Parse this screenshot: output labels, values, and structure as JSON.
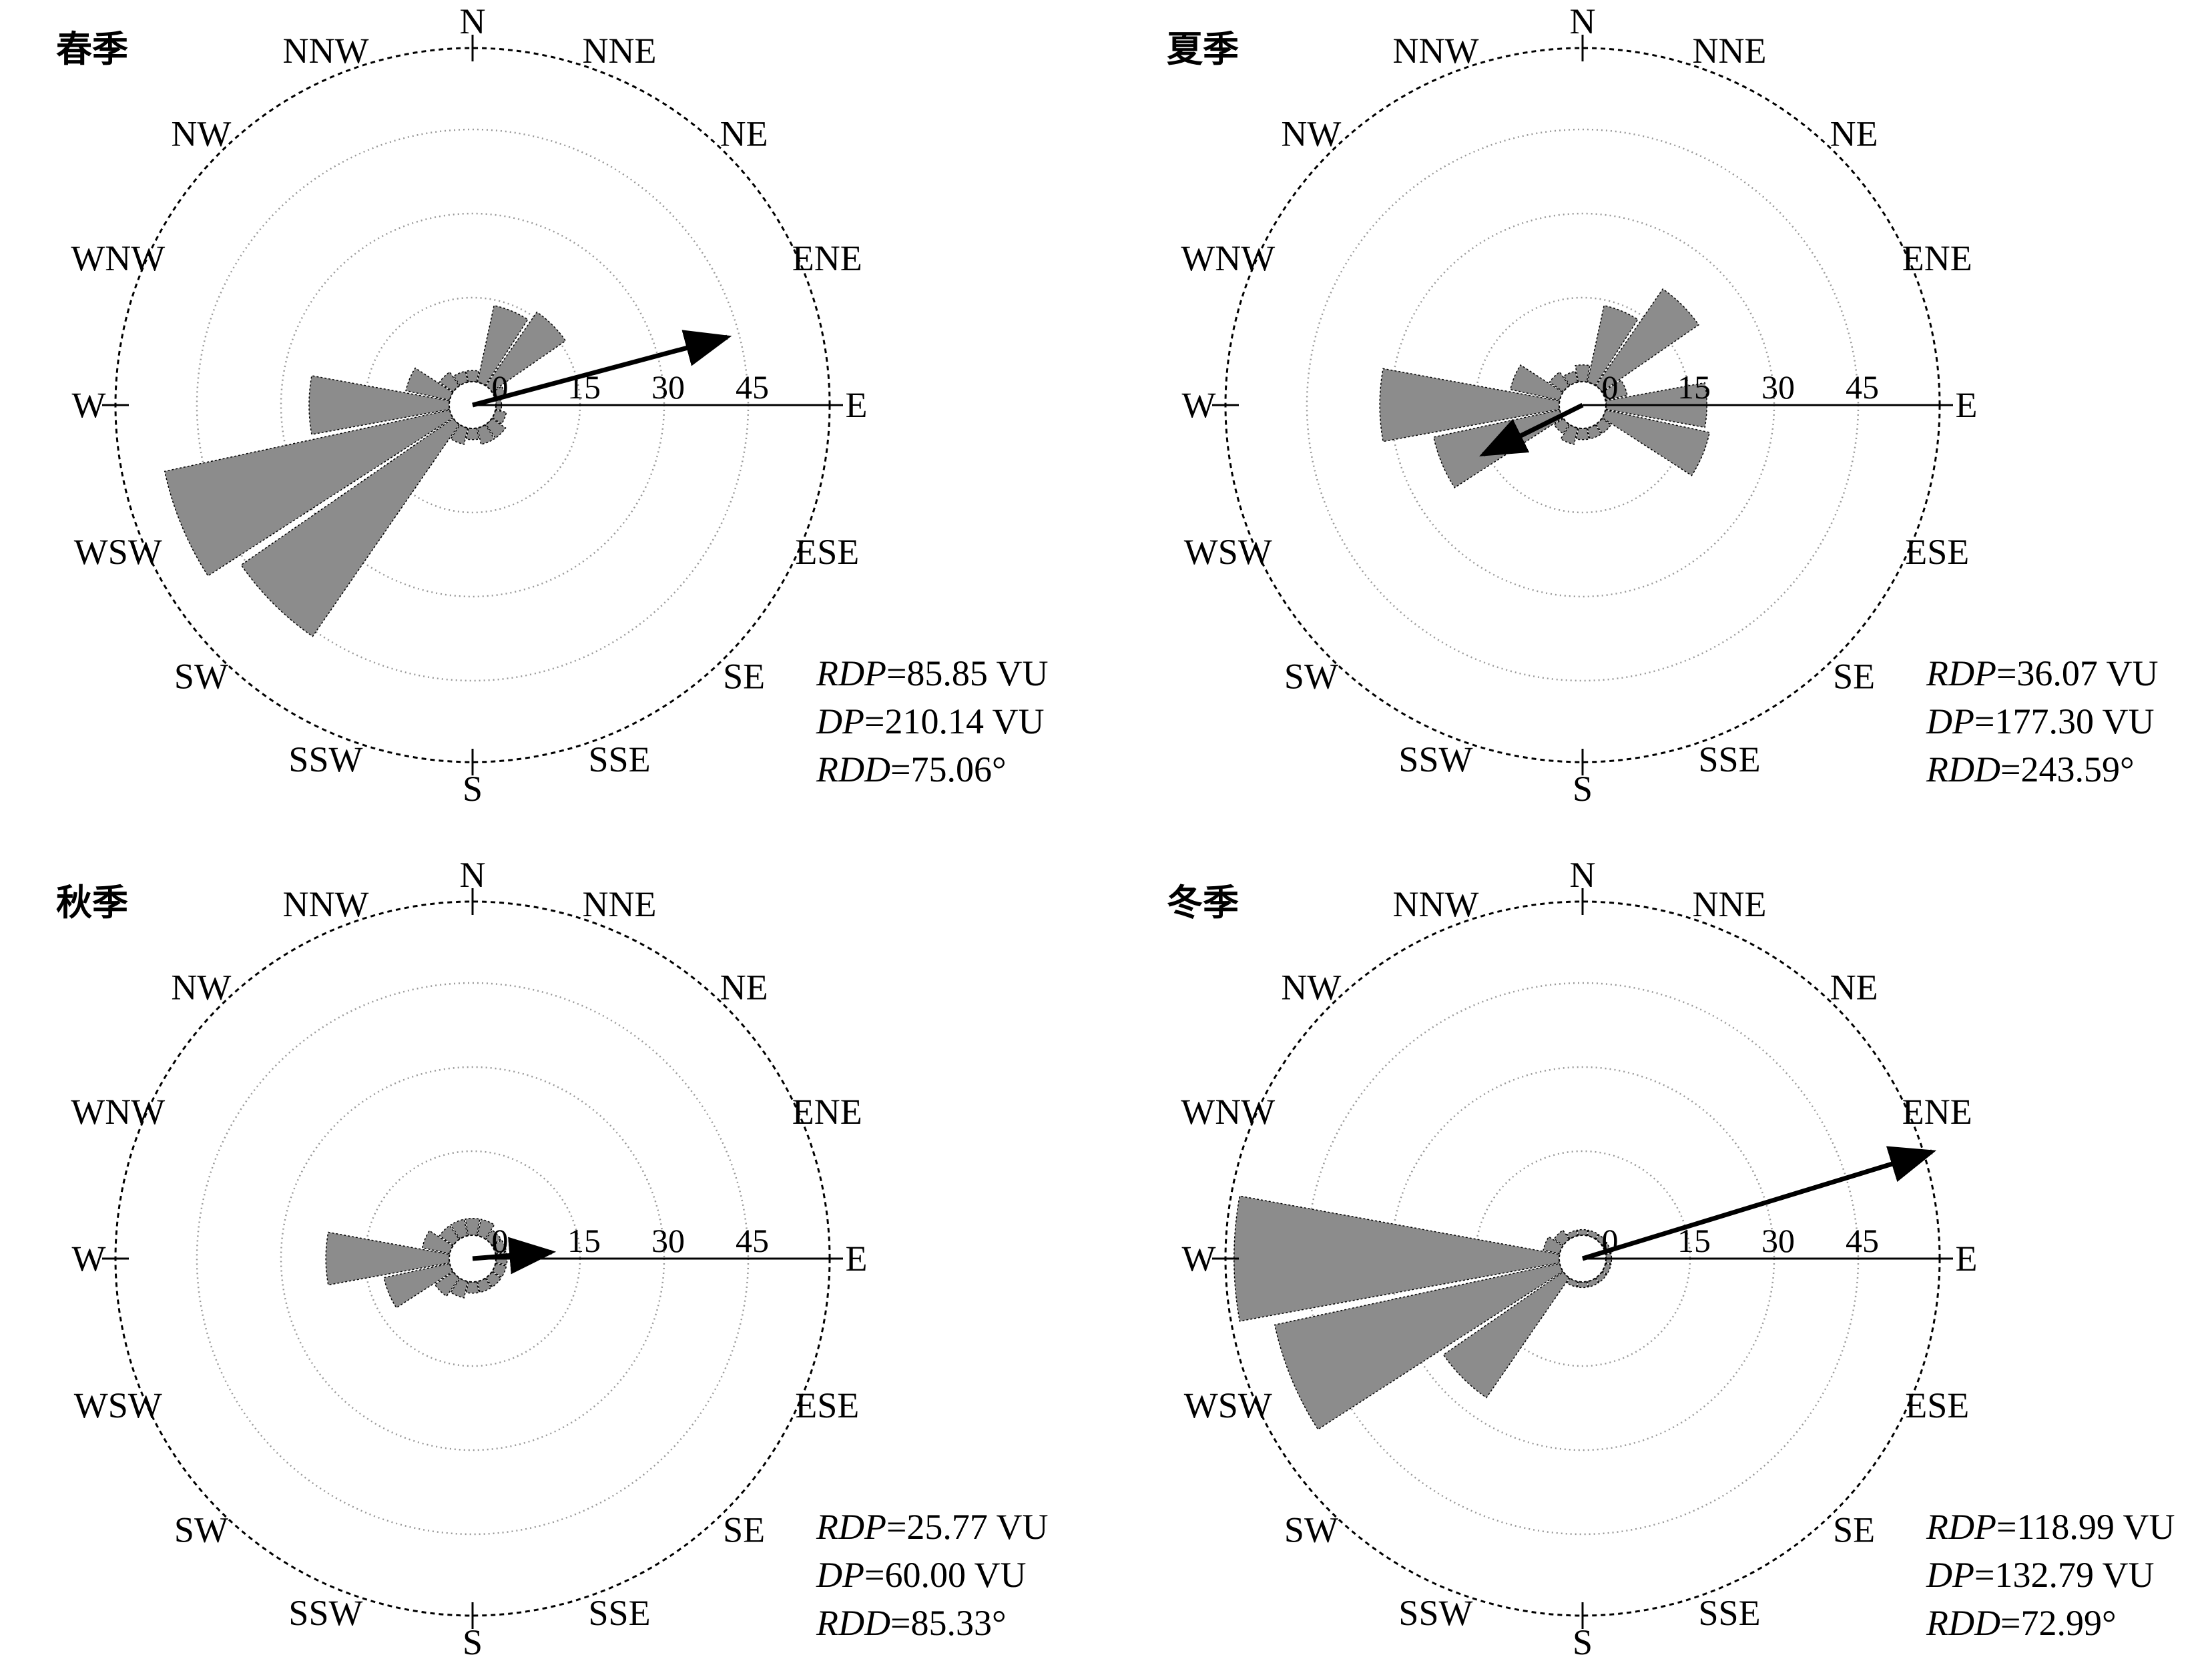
{
  "directions": [
    "N",
    "NNE",
    "NE",
    "ENE",
    "E",
    "ESE",
    "SE",
    "SSE",
    "S",
    "SSW",
    "SW",
    "WSW",
    "W",
    "WNW",
    "NW",
    "NNW"
  ],
  "ring_labels": [
    "0",
    "15",
    "30",
    "45"
  ],
  "stat_names": {
    "rdp": "RDP",
    "dp": "DP",
    "rdd": "RDD"
  },
  "colors": {
    "petal": "#8c8c8c",
    "petal_edge": "#000000",
    "arrow": "#000000",
    "grid": "#999999"
  },
  "chart_data": [
    {
      "type": "rose",
      "title": "春季",
      "rlim": [
        0,
        45
      ],
      "rticks": [
        0,
        15,
        30,
        45
      ],
      "directions": [
        "N",
        "NNE",
        "NE",
        "ENE",
        "E",
        "ESE",
        "SE",
        "SSE",
        "S",
        "SSW",
        "SW",
        "WSW",
        "W",
        "WNW",
        "NW",
        "NNW"
      ],
      "values": [
        2,
        14,
        16,
        2,
        1,
        2,
        3,
        3,
        2,
        3,
        46,
        52,
        25,
        8,
        3,
        2
      ],
      "resultant_direction_deg": 75.06,
      "stats": {
        "rdp": "=85.85 VU",
        "dp": "=210.14 VU",
        "rdd": "=75.06°"
      }
    },
    {
      "type": "rose",
      "title": "夏季",
      "rlim": [
        0,
        45
      ],
      "rticks": [
        0,
        15,
        30,
        45
      ],
      "directions": [
        "N",
        "NNE",
        "NE",
        "ENE",
        "E",
        "ESE",
        "SE",
        "SSE",
        "S",
        "SSW",
        "SW",
        "WSW",
        "W",
        "WNW",
        "NW",
        "NNW"
      ],
      "values": [
        3,
        14,
        21,
        4,
        18,
        19,
        2,
        2,
        2,
        3,
        2,
        23,
        32,
        9,
        3,
        2
      ],
      "resultant_direction_deg": 243.59,
      "stats": {
        "rdp": "=36.07 VU",
        "dp": "=177.30 VU",
        "rdd": "=243.59°"
      }
    },
    {
      "type": "rose",
      "title": "秋季",
      "rlim": [
        0,
        45
      ],
      "rticks": [
        0,
        15,
        30,
        45
      ],
      "directions": [
        "N",
        "NNE",
        "NE",
        "ENE",
        "E",
        "ESE",
        "SE",
        "SSE",
        "S",
        "SSW",
        "SW",
        "WSW",
        "W",
        "WNW",
        "NW",
        "NNW"
      ],
      "values": [
        3,
        3,
        2,
        2,
        2,
        2,
        2,
        2,
        2,
        3,
        4,
        12,
        22,
        5,
        3,
        3
      ],
      "resultant_direction_deg": 85.33,
      "stats": {
        "rdp": "=25.77 VU",
        "dp": "=60.00 VU",
        "rdd": "=85.33°"
      }
    },
    {
      "type": "rose",
      "title": "冬季",
      "rlim": [
        0,
        45
      ],
      "rticks": [
        0,
        15,
        30,
        45
      ],
      "directions": [
        "N",
        "NNE",
        "NE",
        "ENE",
        "E",
        "ESE",
        "SE",
        "SSE",
        "S",
        "SSW",
        "SW",
        "WSW",
        "W",
        "WNW",
        "NW",
        "NNW"
      ],
      "values": [
        1,
        1,
        1,
        1,
        1,
        1,
        1,
        1,
        1,
        1,
        26,
        52,
        58,
        3,
        2,
        1
      ],
      "resultant_direction_deg": 72.99,
      "stats": {
        "rdp": "=118.99 VU",
        "dp": "=132.79 VU",
        "rdd": "=72.99°"
      }
    }
  ]
}
